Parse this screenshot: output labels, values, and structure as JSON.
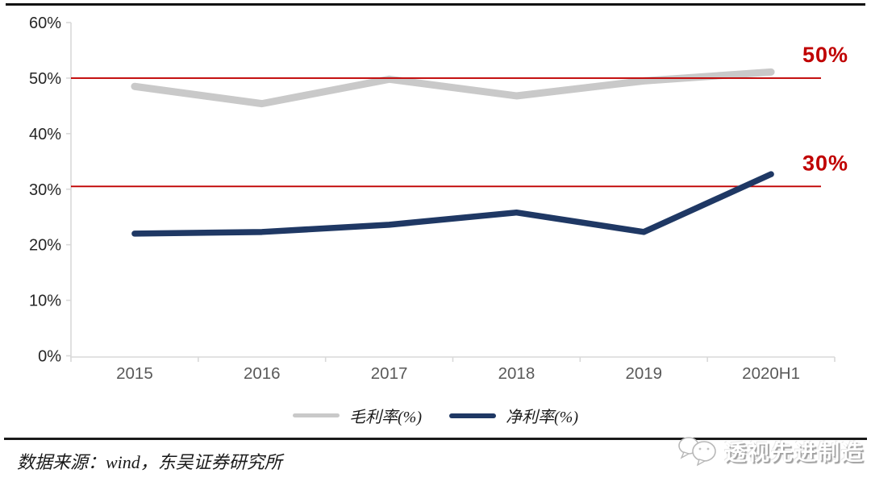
{
  "chart_data": {
    "type": "line",
    "title": "",
    "categories": [
      "2015",
      "2016",
      "2017",
      "2018",
      "2019",
      "2020H1"
    ],
    "series": [
      {
        "key": "gross-margin",
        "name": "毛利率(%)",
        "color": "#c9c9c9",
        "values": [
          48.5,
          45.4,
          49.8,
          46.8,
          49.5,
          51.1
        ]
      },
      {
        "key": "net-margin",
        "name": "净利率(%)",
        "color": "#1f3864",
        "values": [
          22.0,
          22.3,
          23.6,
          25.8,
          22.3,
          32.7
        ]
      }
    ],
    "xlabel": "",
    "ylabel": "",
    "ylim": [
      0,
      60
    ],
    "ytick_labels": [
      "0%",
      "10%",
      "20%",
      "30%",
      "40%",
      "50%",
      "60%"
    ],
    "reference_lines": [
      {
        "value": 50,
        "label": "50%",
        "color": "#c00000"
      },
      {
        "value": 30.5,
        "label": "30%",
        "color": "#c00000"
      }
    ],
    "grid": false,
    "legend_position": "bottom-center",
    "axis_color": "#d9d9d9",
    "ytick_color": "#262626",
    "xtick_color": "#595959"
  },
  "footer": {
    "source_text": "数据来源：wind，东吴证券研究所"
  },
  "watermark": {
    "text": "透视先进制造"
  }
}
